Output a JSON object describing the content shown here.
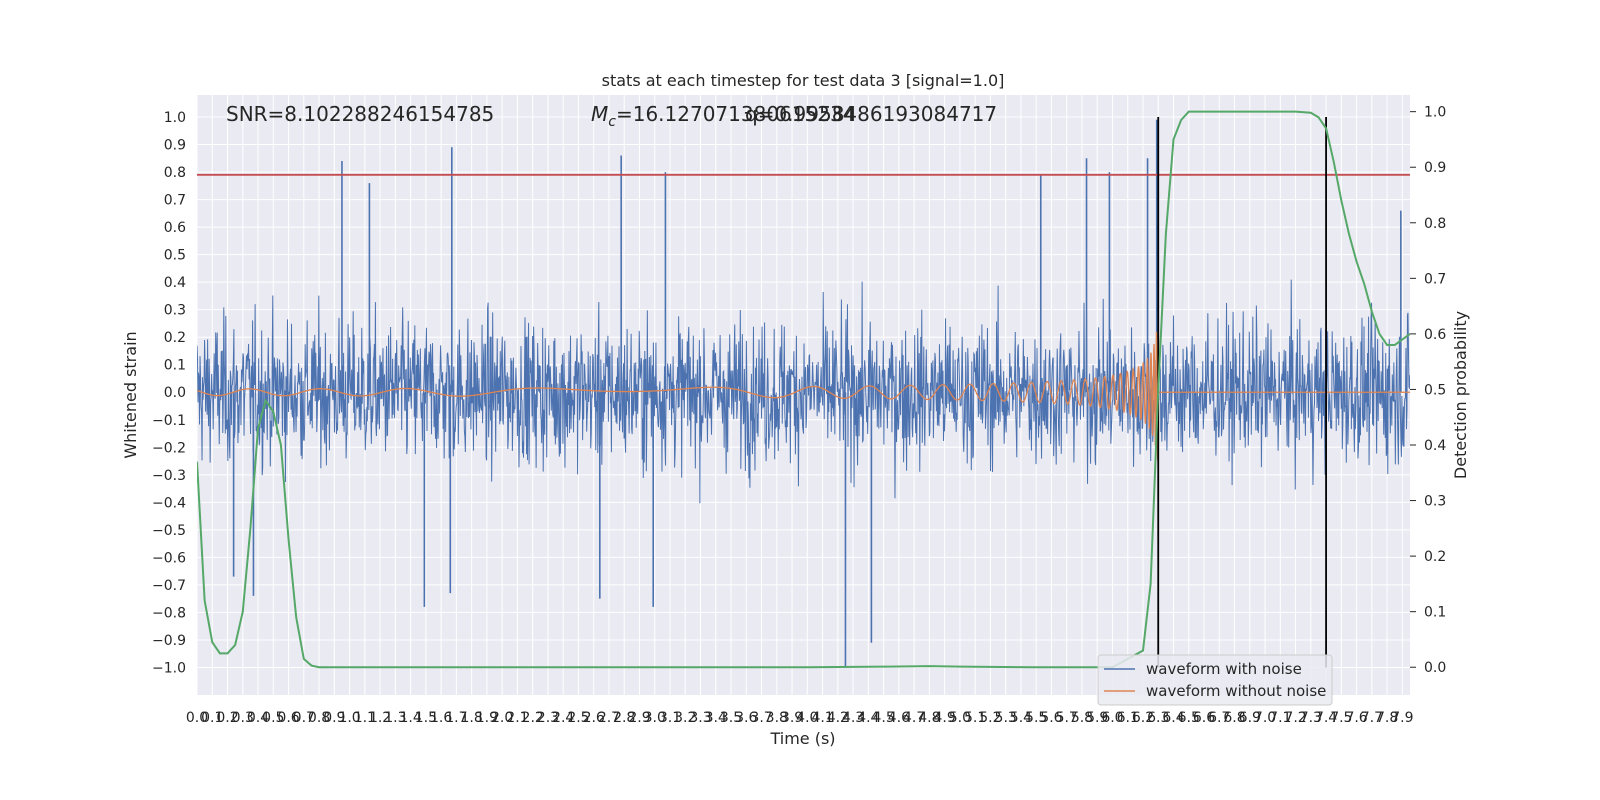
{
  "chart_data": {
    "type": "line",
    "title": "stats at each timestep for test data 3 [signal=1.0]",
    "xlabel": "Time (s)",
    "ylabel": "Whitened strain",
    "y2label": "Detection probability",
    "xlim": [
      0.0,
      7.95
    ],
    "ylim": [
      -1.1,
      1.08
    ],
    "y2lim": [
      -0.05,
      1.03
    ],
    "x_ticks": [
      "0.0",
      "0.1",
      "0.2",
      "0.3",
      "0.4",
      "0.5",
      "0.6",
      "0.7",
      "0.8",
      "0.9",
      "1.0",
      "1.1",
      "1.2",
      "1.3",
      "1.4",
      "1.5",
      "1.6",
      "1.7",
      "1.8",
      "1.9",
      "2.0",
      "2.1",
      "2.2",
      "2.3",
      "2.4",
      "2.5",
      "2.6",
      "2.7",
      "2.8",
      "2.9",
      "3.0",
      "3.1",
      "3.2",
      "3.3",
      "3.4",
      "3.5",
      "3.6",
      "3.7",
      "3.8",
      "3.9",
      "4.0",
      "4.1",
      "4.2",
      "4.3",
      "4.4",
      "4.5",
      "4.6",
      "4.7",
      "4.8",
      "4.9",
      "5.0",
      "5.1",
      "5.2",
      "5.3",
      "5.4",
      "5.5",
      "5.6",
      "5.7",
      "5.8",
      "5.9",
      "6.0",
      "6.1",
      "6.2",
      "6.3",
      "6.4",
      "6.5",
      "6.6",
      "6.7",
      "6.8",
      "6.9",
      "7.0",
      "7.1",
      "7.2",
      "7.3",
      "7.4",
      "7.5",
      "7.6",
      "7.7",
      "7.8",
      "7.9"
    ],
    "y_ticks": [
      "1.0",
      "0.9",
      "0.8",
      "0.7",
      "0.6",
      "0.5",
      "0.4",
      "0.3",
      "0.2",
      "0.1",
      "0.0",
      "−0.1",
      "−0.2",
      "−0.3",
      "−0.4",
      "−0.5",
      "−0.6",
      "−0.7",
      "−0.8",
      "−0.9",
      "−1.0"
    ],
    "y2_ticks": [
      "1.0",
      "0.9",
      "0.8",
      "0.7",
      "0.6",
      "0.5",
      "0.4",
      "0.3",
      "0.2",
      "0.1",
      "0.0"
    ],
    "annotations": {
      "snr": "SNR=8.102288246154785",
      "mc_symbol": "M",
      "mc_sub": "c",
      "mc_value": "=16.127071380615234",
      "q_text": "q=0.9958486193084717"
    },
    "threshold": 0.79,
    "merger_markers": [
      6.3,
      7.4
    ],
    "grid": true,
    "legend_position": "lower-right",
    "series": [
      {
        "name": "waveform with noise",
        "color": "#4c72b0",
        "noise_amplitude": 0.3,
        "spikes": [
          [
            0.95,
            0.84
          ],
          [
            1.13,
            0.76
          ],
          [
            1.67,
            0.89
          ],
          [
            2.78,
            0.86
          ],
          [
            3.07,
            0.8
          ],
          [
            5.53,
            0.79
          ],
          [
            5.83,
            0.85
          ],
          [
            5.98,
            0.8
          ],
          [
            6.23,
            0.85
          ],
          [
            6.29,
            0.99
          ],
          [
            4.25,
            -1.0
          ],
          [
            4.42,
            -0.91
          ],
          [
            1.49,
            -0.78
          ],
          [
            1.66,
            -0.73
          ],
          [
            2.99,
            -0.78
          ],
          [
            2.64,
            -0.75
          ],
          [
            0.37,
            -0.74
          ],
          [
            0.24,
            -0.67
          ],
          [
            7.89,
            0.66
          ]
        ]
      },
      {
        "name": "waveform without noise",
        "color": "#dd8452",
        "chirp": {
          "merger_time": 6.3,
          "peak_positive": 0.38,
          "peak_negative": -0.29,
          "start_frequency_hz": 10,
          "end_frequency_hz": 160
        }
      },
      {
        "name": "Detection probability",
        "color": "#55a868",
        "axis": "right",
        "t": [
          0.0,
          0.05,
          0.1,
          0.15,
          0.2,
          0.25,
          0.3,
          0.35,
          0.4,
          0.45,
          0.5,
          0.55,
          0.6,
          0.65,
          0.7,
          0.75,
          0.8,
          0.85,
          0.9,
          1.0,
          2.0,
          3.0,
          4.0,
          4.5,
          4.8,
          5.0,
          5.5,
          6.0,
          6.2,
          6.25,
          6.3,
          6.35,
          6.4,
          6.45,
          6.5,
          6.55,
          6.6,
          6.7,
          7.0,
          7.2,
          7.3,
          7.35,
          7.4,
          7.45,
          7.5,
          7.55,
          7.6,
          7.65,
          7.7,
          7.75,
          7.8,
          7.85,
          7.9,
          7.95
        ],
        "p": [
          0.37,
          0.12,
          0.045,
          0.025,
          0.025,
          0.04,
          0.1,
          0.25,
          0.43,
          0.48,
          0.46,
          0.4,
          0.23,
          0.09,
          0.015,
          0.003,
          0.0,
          0.0,
          0.0,
          0.0,
          0.0,
          0.0,
          0.0,
          0.001,
          0.002,
          0.001,
          0.0,
          0.0,
          0.03,
          0.15,
          0.5,
          0.78,
          0.95,
          0.985,
          1.0,
          1.0,
          1.0,
          1.0,
          1.0,
          1.0,
          0.998,
          0.99,
          0.97,
          0.91,
          0.84,
          0.78,
          0.73,
          0.69,
          0.64,
          0.6,
          0.58,
          0.58,
          0.59,
          0.6
        ]
      }
    ]
  }
}
